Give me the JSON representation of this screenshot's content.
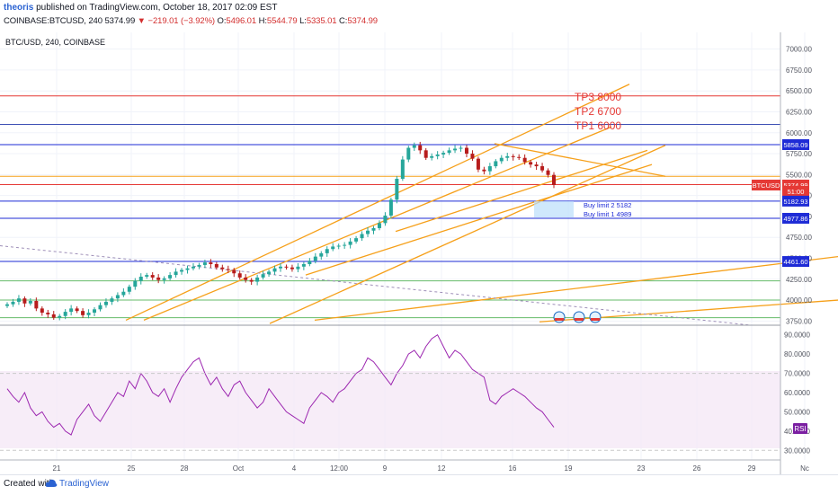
{
  "header": {
    "user": "theoris",
    "published_text": "published on TradingView.com, October 18, 2017 02:09 EST"
  },
  "ohlc": {
    "symbol_tf": "COINBASE:BTCUSD, 240",
    "price": "5374.99",
    "arrow": "▼",
    "change": "−219.01 (−3.92%)",
    "o_label": "O:",
    "o": "5496.01",
    "h_label": "H:",
    "h": "5544.79",
    "l_label": "L:",
    "l": "5335.01",
    "c_label": "C:",
    "c": "5374.99"
  },
  "footer": {
    "created_with": "Created with",
    "brand": "TradingView"
  },
  "chart_data": [
    {
      "type": "candlestick",
      "title": "BTC/USD, 240, COINBASE",
      "ylim": [
        3700,
        7200
      ],
      "y_ticks": [
        3750,
        4000,
        4250,
        4500,
        4750,
        5000,
        5250,
        5500,
        5750,
        6000,
        6250,
        6500,
        6750,
        7000
      ],
      "y_tick_labels": [
        "3750.00",
        "4000.00",
        "4250.00",
        "4500.00",
        "4750.00",
        "5000.00",
        "5250.00",
        "5500.00",
        "5750.00",
        "6000.00",
        "6250.00",
        "6500.00",
        "6750.00",
        "7000.00"
      ],
      "x_ticks": [
        "21",
        "25",
        "28",
        "Oct",
        "4",
        "12:00",
        "9",
        "12",
        "16",
        "19",
        "23",
        "26",
        "29",
        "Nc"
      ],
      "x_tick_pos": [
        63,
        146,
        205,
        265,
        327,
        377,
        428,
        491,
        570,
        632,
        713,
        775,
        836,
        895
      ],
      "price_close": [
        3950,
        3980,
        4020,
        3960,
        3990,
        3900,
        3850,
        3830,
        3790,
        3810,
        3860,
        3900,
        3870,
        3820,
        3850,
        3890,
        3940,
        3980,
        4020,
        4060,
        4100,
        4160,
        4230,
        4280,
        4300,
        4270,
        4240,
        4260,
        4300,
        4340,
        4360,
        4380,
        4400,
        4420,
        4450,
        4430,
        4390,
        4370,
        4360,
        4320,
        4270,
        4240,
        4220,
        4270,
        4310,
        4340,
        4380,
        4400,
        4390,
        4370,
        4400,
        4430,
        4470,
        4520,
        4560,
        4610,
        4640,
        4650,
        4660,
        4700,
        4740,
        4790,
        4830,
        4860,
        4920,
        5010,
        5200,
        5450,
        5680,
        5820,
        5850,
        5790,
        5700,
        5720,
        5740,
        5760,
        5790,
        5810,
        5820,
        5750,
        5690,
        5560,
        5540,
        5600,
        5660,
        5700,
        5720,
        5710,
        5700,
        5650,
        5620,
        5600,
        5550,
        5496,
        5374.99
      ],
      "price_labels": [
        {
          "value": 5858.09,
          "text": "5858.09",
          "color": "#1e2bd6"
        },
        {
          "value": 5374.99,
          "text": "BTCUSD",
          "color": "#e53935"
        },
        {
          "value": 5374.99,
          "text": "5374.99",
          "color": "#e53935"
        },
        {
          "value": 5300,
          "text": "51:00",
          "color": "#e53935"
        },
        {
          "value": 5182.93,
          "text": "5182.93",
          "color": "#1e2bd6"
        },
        {
          "value": 4977.86,
          "text": "4977.86",
          "color": "#1e2bd6"
        },
        {
          "value": 4461.6,
          "text": "4461.60",
          "color": "#1e2bd6"
        }
      ],
      "horizontal_lines": [
        {
          "value": 6440,
          "color": "#e53935"
        },
        {
          "value": 6100,
          "color": "#3f51b5"
        },
        {
          "value": 5858.09,
          "color": "#1e2bd6"
        },
        {
          "value": 5480,
          "color": "#f6a01a"
        },
        {
          "value": 5380,
          "color": "#e53935"
        },
        {
          "value": 5182.93,
          "color": "#1e2bd6"
        },
        {
          "value": 4977.86,
          "color": "#1e2bd6"
        },
        {
          "value": 4461.6,
          "color": "#1e2bd6"
        },
        {
          "value": 4230,
          "color": "#66bb6a"
        },
        {
          "value": 4000,
          "color": "#66bb6a"
        },
        {
          "value": 3790,
          "color": "#66bb6a"
        }
      ],
      "annotations": [
        {
          "text": "TP3 8000",
          "color": "#e53935"
        },
        {
          "text": "TP2 6700",
          "color": "#e53935"
        },
        {
          "text": "TP1 6000",
          "color": "#e53935"
        },
        {
          "text": "Buy limit  2  5182",
          "color": "#1e2bd6"
        },
        {
          "text": "Buy limit 1   4989",
          "color": "#1e2bd6"
        }
      ],
      "trendline_color": "#f6a01a",
      "grid": true
    },
    {
      "type": "line",
      "series": [
        {
          "name": "RSI",
          "color": "#9c27b0"
        }
      ],
      "ylim": [
        25,
        95
      ],
      "y_ticks": [
        30,
        40,
        50,
        60,
        70,
        80,
        90
      ],
      "y_tick_labels": [
        "30.0000",
        "40.0000",
        "50.0000",
        "60.0000",
        "70.0000",
        "80.0000",
        "90.0000"
      ],
      "band": [
        30,
        70
      ],
      "values": [
        62,
        58,
        55,
        60,
        52,
        48,
        50,
        45,
        42,
        44,
        40,
        38,
        46,
        50,
        54,
        48,
        45,
        50,
        55,
        60,
        58,
        66,
        62,
        70,
        66,
        60,
        58,
        62,
        55,
        62,
        68,
        72,
        76,
        78,
        70,
        64,
        68,
        62,
        58,
        64,
        66,
        60,
        56,
        52,
        55,
        62,
        58,
        54,
        50,
        48,
        46,
        44,
        52,
        56,
        60,
        58,
        55,
        60,
        62,
        66,
        70,
        72,
        78,
        76,
        72,
        68,
        64,
        70,
        74,
        80,
        82,
        78,
        84,
        88,
        90,
        84,
        78,
        82,
        80,
        76,
        72,
        70,
        68,
        56,
        54,
        58,
        60,
        62,
        60,
        58,
        55,
        52,
        50,
        46,
        42
      ]
    }
  ]
}
